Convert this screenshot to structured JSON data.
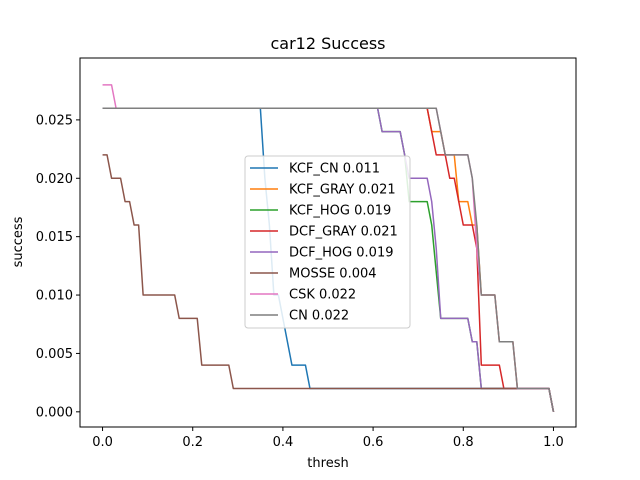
{
  "chart_data": {
    "type": "line",
    "title": "car12 Success",
    "xlabel": "thresh",
    "ylabel": "success",
    "xlim": [
      -0.05,
      1.05
    ],
    "ylim": [
      -0.0013,
      0.0303
    ],
    "xticks": [
      0.0,
      0.2,
      0.4,
      0.6,
      0.8,
      1.0
    ],
    "xtick_labels": [
      "0.0",
      "0.2",
      "0.4",
      "0.6",
      "0.8",
      "1.0"
    ],
    "yticks": [
      0.0,
      0.005,
      0.01,
      0.015,
      0.02,
      0.025
    ],
    "ytick_labels": [
      "0.000",
      "0.005",
      "0.010",
      "0.015",
      "0.020",
      "0.025"
    ],
    "grid": false,
    "legend_placement": "center",
    "series": [
      {
        "name": "KCF_CN 0.011",
        "color": "#1f77b4",
        "x": [
          0.0,
          0.35,
          0.36,
          0.37,
          0.38,
          0.39,
          0.4,
          0.41,
          0.42,
          0.45,
          0.46,
          0.99,
          1.0
        ],
        "y": [
          0.026,
          0.026,
          0.02,
          0.016,
          0.01,
          0.01,
          0.008,
          0.006,
          0.004,
          0.004,
          0.002,
          0.002,
          0.0
        ]
      },
      {
        "name": "KCF_GRAY 0.021",
        "color": "#ff7f0e",
        "x": [
          0.0,
          0.72,
          0.73,
          0.74,
          0.75,
          0.76,
          0.77,
          0.78,
          0.79,
          0.8,
          0.81,
          0.82,
          0.83,
          0.84,
          0.85,
          0.86,
          0.87,
          0.88,
          0.89,
          0.9,
          0.91,
          0.92,
          0.99,
          1.0
        ],
        "y": [
          0.026,
          0.026,
          0.024,
          0.024,
          0.024,
          0.022,
          0.022,
          0.022,
          0.018,
          0.018,
          0.018,
          0.016,
          0.016,
          0.01,
          0.01,
          0.01,
          0.01,
          0.006,
          0.006,
          0.006,
          0.006,
          0.002,
          0.002,
          0.0
        ]
      },
      {
        "name": "KCF_HOG 0.019",
        "color": "#2ca02c",
        "x": [
          0.0,
          0.61,
          0.62,
          0.63,
          0.64,
          0.65,
          0.66,
          0.67,
          0.68,
          0.69,
          0.7,
          0.71,
          0.72,
          0.73,
          0.74,
          0.75,
          0.76,
          0.77,
          0.78,
          0.79,
          0.8,
          0.81,
          0.82,
          0.83,
          0.84,
          0.99,
          1.0
        ],
        "y": [
          0.026,
          0.026,
          0.024,
          0.024,
          0.024,
          0.024,
          0.024,
          0.022,
          0.018,
          0.018,
          0.018,
          0.018,
          0.018,
          0.016,
          0.012,
          0.008,
          0.008,
          0.008,
          0.008,
          0.008,
          0.008,
          0.008,
          0.006,
          0.006,
          0.002,
          0.002,
          0.0
        ]
      },
      {
        "name": "DCF_GRAY 0.021",
        "color": "#d62728",
        "x": [
          0.0,
          0.72,
          0.73,
          0.74,
          0.75,
          0.76,
          0.77,
          0.78,
          0.79,
          0.8,
          0.81,
          0.82,
          0.83,
          0.84,
          0.85,
          0.86,
          0.87,
          0.88,
          0.89,
          0.9,
          0.91,
          0.92,
          0.99,
          1.0
        ],
        "y": [
          0.026,
          0.026,
          0.024,
          0.022,
          0.022,
          0.022,
          0.02,
          0.02,
          0.018,
          0.016,
          0.016,
          0.016,
          0.014,
          0.004,
          0.004,
          0.004,
          0.004,
          0.004,
          0.002,
          0.002,
          0.002,
          0.002,
          0.002,
          0.0
        ]
      },
      {
        "name": "DCF_HOG 0.019",
        "color": "#9467bd",
        "x": [
          0.0,
          0.61,
          0.62,
          0.63,
          0.64,
          0.65,
          0.66,
          0.67,
          0.68,
          0.69,
          0.7,
          0.71,
          0.72,
          0.73,
          0.74,
          0.75,
          0.76,
          0.77,
          0.78,
          0.79,
          0.8,
          0.81,
          0.82,
          0.83,
          0.84,
          0.99,
          1.0
        ],
        "y": [
          0.026,
          0.026,
          0.024,
          0.024,
          0.024,
          0.024,
          0.024,
          0.022,
          0.02,
          0.02,
          0.02,
          0.02,
          0.02,
          0.018,
          0.014,
          0.008,
          0.008,
          0.008,
          0.008,
          0.008,
          0.008,
          0.008,
          0.006,
          0.006,
          0.002,
          0.002,
          0.0
        ]
      },
      {
        "name": "MOSSE 0.004",
        "color": "#8c564b",
        "x": [
          0.0,
          0.01,
          0.02,
          0.03,
          0.04,
          0.05,
          0.06,
          0.07,
          0.08,
          0.09,
          0.16,
          0.17,
          0.18,
          0.19,
          0.2,
          0.21,
          0.22,
          0.23,
          0.27,
          0.28,
          0.29,
          0.99,
          1.0
        ],
        "y": [
          0.022,
          0.022,
          0.02,
          0.02,
          0.02,
          0.018,
          0.018,
          0.016,
          0.016,
          0.01,
          0.01,
          0.008,
          0.008,
          0.008,
          0.008,
          0.008,
          0.004,
          0.004,
          0.004,
          0.004,
          0.002,
          0.002,
          0.0
        ]
      },
      {
        "name": "CSK 0.022",
        "color": "#e377c2",
        "x": [
          0.0,
          0.01,
          0.02,
          0.03,
          0.72,
          0.73,
          0.74,
          0.75,
          0.76,
          0.77,
          0.78,
          0.79,
          0.8,
          0.81,
          0.82,
          0.83,
          0.84,
          0.85,
          0.86,
          0.87,
          0.88,
          0.89,
          0.9,
          0.91,
          0.92,
          0.99,
          1.0
        ],
        "y": [
          0.028,
          0.028,
          0.028,
          0.026,
          0.026,
          0.026,
          0.026,
          0.024,
          0.022,
          0.022,
          0.022,
          0.022,
          0.022,
          0.022,
          0.02,
          0.014,
          0.01,
          0.01,
          0.01,
          0.01,
          0.006,
          0.006,
          0.006,
          0.006,
          0.002,
          0.002,
          0.0
        ]
      },
      {
        "name": "CN 0.022",
        "color": "#7f7f7f",
        "x": [
          0.0,
          0.72,
          0.73,
          0.74,
          0.75,
          0.76,
          0.77,
          0.78,
          0.79,
          0.8,
          0.81,
          0.82,
          0.83,
          0.84,
          0.85,
          0.86,
          0.87,
          0.88,
          0.89,
          0.9,
          0.91,
          0.92,
          0.99,
          1.0
        ],
        "y": [
          0.026,
          0.026,
          0.026,
          0.026,
          0.024,
          0.022,
          0.022,
          0.022,
          0.022,
          0.022,
          0.022,
          0.02,
          0.016,
          0.01,
          0.01,
          0.01,
          0.01,
          0.006,
          0.006,
          0.006,
          0.006,
          0.002,
          0.002,
          0.0
        ]
      }
    ]
  }
}
